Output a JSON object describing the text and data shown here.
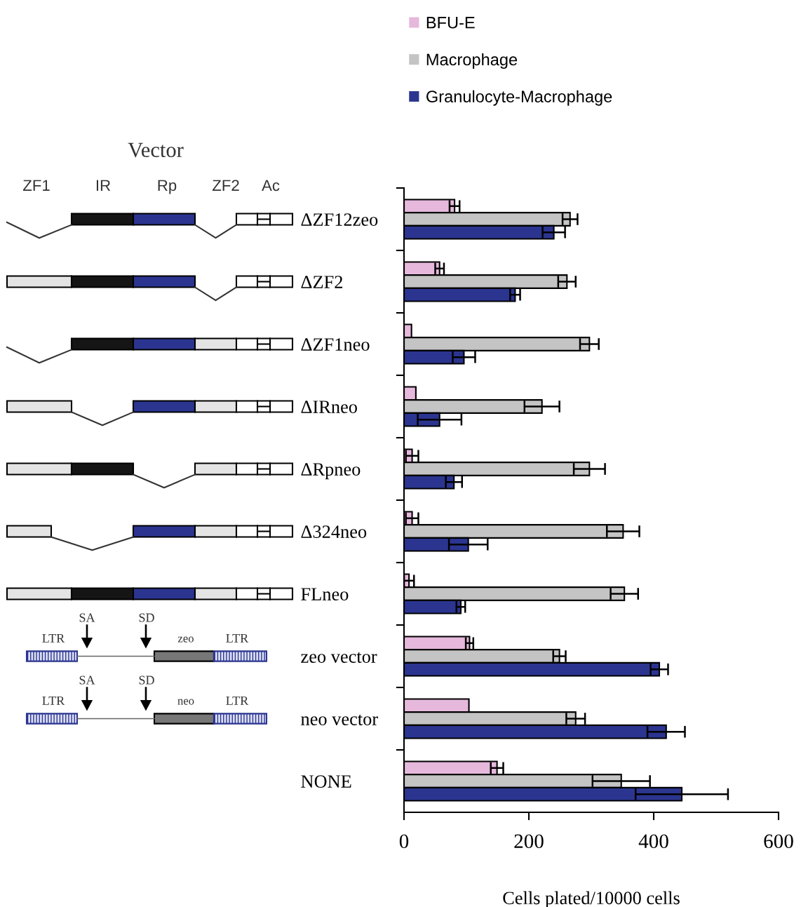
{
  "chart_data": {
    "type": "bar",
    "orientation": "horizontal",
    "categories": [
      "ΔZF12zeo",
      "ΔZF2",
      "ΔZF1neo",
      "ΔIRneo",
      "ΔRpneo",
      "Δ324neo",
      "FLneo",
      "zeo vector",
      "neo vector",
      "NONE"
    ],
    "series": [
      {
        "name": "BFU-E",
        "color": "#e6b8dc",
        "values": [
          81,
          57,
          12,
          19,
          13,
          13,
          8,
          105,
          104,
          149
        ],
        "errors": [
          8,
          7,
          null,
          null,
          10,
          10,
          8,
          6,
          null,
          10
        ]
      },
      {
        "name": "Macrophage",
        "color": "#c4c4c4",
        "values": [
          266,
          261,
          297,
          221,
          297,
          351,
          353,
          249,
          275,
          348
        ],
        "errors": [
          12,
          14,
          15,
          28,
          25,
          26,
          22,
          10,
          15,
          46
        ]
      },
      {
        "name": "Granulocyte-Macrophage",
        "color": "#2b3590",
        "values": [
          240,
          178,
          96,
          57,
          80,
          103,
          91,
          409,
          420,
          445
        ],
        "errors": [
          18,
          8,
          18,
          35,
          13,
          31,
          7,
          14,
          30,
          74
        ]
      }
    ],
    "xlabel": "Cells plated/10000 cells",
    "xlim": [
      0,
      600
    ],
    "xticks": [
      0,
      200,
      400,
      600
    ],
    "legend": "top",
    "grid": false,
    "annotations": [
      "Vector",
      "ZF1",
      "IR",
      "Rp",
      "ZF2",
      "Ac",
      "SA",
      "SD",
      "LTR",
      "zeo",
      "LTR",
      "SA",
      "SD",
      "LTR",
      "neo",
      "LTR"
    ]
  }
}
